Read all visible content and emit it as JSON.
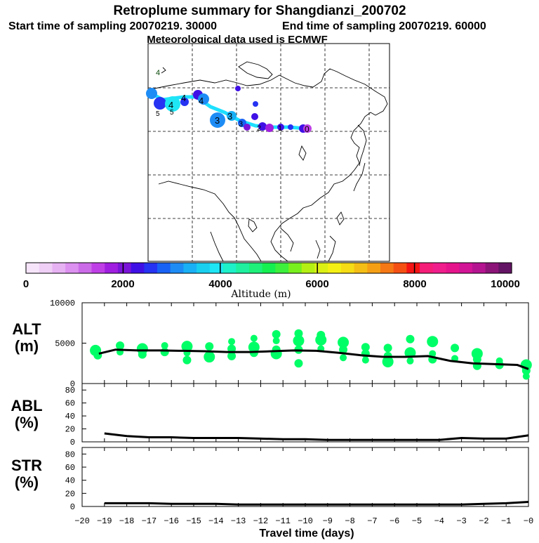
{
  "header": {
    "title": "Retroplume summary for Shangdianzi_200702",
    "start_label": "Start time of sampling 20070219. 30000",
    "end_label": "End time of sampling 20070219. 60000",
    "met_label": "Meteorological data used is ECMWF"
  },
  "map": {
    "plume_labels": [
      "4",
      "4",
      "4",
      "4",
      "5",
      "5",
      "3",
      "3",
      "3",
      "2",
      "1",
      "0"
    ],
    "colors": {
      "land_outline": "#000000",
      "track": "#1ee0ff"
    }
  },
  "colorbar": {
    "ticks": [
      "0",
      "2000",
      "4000",
      "6000",
      "8000",
      "10000"
    ],
    "label": "Altitude (m)",
    "colors": [
      "#f6e4fb",
      "#efcff6",
      "#e6b2f2",
      "#dc90ef",
      "#cc6be8",
      "#bf3fe6",
      "#a01ee0",
      "#7b14d9",
      "#3f10e6",
      "#2633f2",
      "#1863f5",
      "#1e8cf5",
      "#19b0f5",
      "#19cfef",
      "#1ee6f5",
      "#1ef0c8",
      "#1ef0a0",
      "#1ef07a",
      "#14f050",
      "#3cf03c",
      "#78f01e",
      "#b4f014",
      "#dcf014",
      "#f5f014",
      "#f5dc14",
      "#f5be14",
      "#f5a014",
      "#f57814",
      "#f55014",
      "#f51414",
      "#f51e78",
      "#f01e8c",
      "#e6148c",
      "#d21496",
      "#b41490",
      "#8c1478",
      "#641464"
    ]
  },
  "chart_data": [
    {
      "type": "line",
      "panel": "ALT",
      "ylabel_line1": "ALT",
      "ylabel_line2": "(m)",
      "ylim": [
        0,
        10000
      ],
      "yticks": [
        "10000",
        "5000",
        "0"
      ],
      "x": [
        -19.25,
        -18.5,
        -17.5,
        -16.5,
        -15.5,
        -14.5,
        -13.5,
        -12.5,
        -11.5,
        -10.5,
        -9.5,
        -8.5,
        -7.5,
        -6.5,
        -5.5,
        -4.5,
        -3.5,
        -2.5,
        -1.5,
        -0.5,
        0
      ],
      "median": [
        3700,
        4200,
        4100,
        4100,
        4050,
        4000,
        3900,
        3900,
        4000,
        4100,
        4050,
        3800,
        3500,
        3300,
        3300,
        3400,
        2800,
        2500,
        2400,
        2300,
        1800
      ],
      "series": [
        {
          "name": "plume altitude (clusters)",
          "color": "#00ff66",
          "points": [
            {
              "x": -19.4,
              "y": 4100
            },
            {
              "x": -19.3,
              "y": 3500
            },
            {
              "x": -18.3,
              "y": 4700
            },
            {
              "x": -18.3,
              "y": 3900
            },
            {
              "x": -17.3,
              "y": 4300
            },
            {
              "x": -17.3,
              "y": 3600
            },
            {
              "x": -16.3,
              "y": 4700
            },
            {
              "x": -16.3,
              "y": 3900
            },
            {
              "x": -15.3,
              "y": 4600
            },
            {
              "x": -15.3,
              "y": 3800
            },
            {
              "x": -15.3,
              "y": 2900
            },
            {
              "x": -14.3,
              "y": 4600
            },
            {
              "x": -14.3,
              "y": 3300
            },
            {
              "x": -13.3,
              "y": 4300
            },
            {
              "x": -13.3,
              "y": 3400
            },
            {
              "x": -13.3,
              "y": 5200
            },
            {
              "x": -12.3,
              "y": 4500
            },
            {
              "x": -12.3,
              "y": 3800
            },
            {
              "x": -12.3,
              "y": 5600
            },
            {
              "x": -11.3,
              "y": 4200
            },
            {
              "x": -11.3,
              "y": 3700
            },
            {
              "x": -11.3,
              "y": 5300
            },
            {
              "x": -11.3,
              "y": 6100
            },
            {
              "x": -10.3,
              "y": 4200
            },
            {
              "x": -10.3,
              "y": 5300
            },
            {
              "x": -10.3,
              "y": 6200
            },
            {
              "x": -10.3,
              "y": 2500
            },
            {
              "x": -9.3,
              "y": 4300
            },
            {
              "x": -9.3,
              "y": 5400
            },
            {
              "x": -9.3,
              "y": 6000
            },
            {
              "x": -8.3,
              "y": 3200
            },
            {
              "x": -8.3,
              "y": 4200
            },
            {
              "x": -8.3,
              "y": 5100
            },
            {
              "x": -7.3,
              "y": 2900
            },
            {
              "x": -7.3,
              "y": 3700
            },
            {
              "x": -7.3,
              "y": 4500
            },
            {
              "x": -6.3,
              "y": 2700
            },
            {
              "x": -6.3,
              "y": 3400
            },
            {
              "x": -6.3,
              "y": 4400
            },
            {
              "x": -5.3,
              "y": 2800
            },
            {
              "x": -5.3,
              "y": 3800
            },
            {
              "x": -5.3,
              "y": 5500
            },
            {
              "x": -4.3,
              "y": 3700
            },
            {
              "x": -4.3,
              "y": 3000
            },
            {
              "x": -4.3,
              "y": 5200
            },
            {
              "x": -3.3,
              "y": 3100
            },
            {
              "x": -3.3,
              "y": 4400
            },
            {
              "x": -2.3,
              "y": 3000
            },
            {
              "x": -2.3,
              "y": 3700
            },
            {
              "x": -2.3,
              "y": 2200
            },
            {
              "x": -1.3,
              "y": 2300
            },
            {
              "x": -1.3,
              "y": 2800
            },
            {
              "x": -0.1,
              "y": 2300
            },
            {
              "x": -0.1,
              "y": 1600
            },
            {
              "x": -0.1,
              "y": 900
            }
          ]
        }
      ]
    },
    {
      "type": "line",
      "panel": "ABL",
      "ylabel_line1": "ABL",
      "ylabel_line2": "(%)",
      "ylim": [
        0,
        90
      ],
      "yticks": [
        "80",
        "60",
        "40",
        "20",
        "0"
      ],
      "x": [
        -19,
        -18,
        -17,
        -16,
        -15,
        -14,
        -13,
        -12,
        -11,
        -10,
        -9,
        -8,
        -7,
        -6,
        -5,
        -4,
        -3,
        -2,
        -1,
        0
      ],
      "values": [
        13,
        9,
        7,
        7,
        6,
        6,
        6,
        5,
        4,
        4,
        3,
        3,
        3,
        3,
        3,
        3,
        6,
        5,
        5,
        10
      ]
    },
    {
      "type": "line",
      "panel": "STR",
      "ylabel_line1": "STR",
      "ylabel_line2": "(%)",
      "ylim": [
        0,
        90
      ],
      "yticks": [
        "80",
        "60",
        "40",
        "20",
        "0"
      ],
      "x": [
        -19,
        -18,
        -17,
        -16,
        -15,
        -14,
        -13,
        -12,
        -11,
        -10,
        -9,
        -8,
        -7,
        -6,
        -5,
        -4,
        -3,
        -2,
        -1,
        0
      ],
      "values": [
        5,
        5,
        5,
        4,
        4,
        4,
        3,
        3,
        3,
        3,
        3,
        3,
        3,
        3,
        3,
        3,
        3,
        4,
        5,
        7
      ],
      "xlabel": "Travel time (days)",
      "xlim": [
        -20,
        0
      ],
      "xticks": [
        "−20",
        "−19",
        "−18",
        "−17",
        "−16",
        "−15",
        "−14",
        "−13",
        "−12",
        "−11",
        "−10",
        "−9",
        "−8",
        "−7",
        "−6",
        "−5",
        "−4",
        "−3",
        "−2",
        "−1",
        "−0"
      ]
    }
  ]
}
